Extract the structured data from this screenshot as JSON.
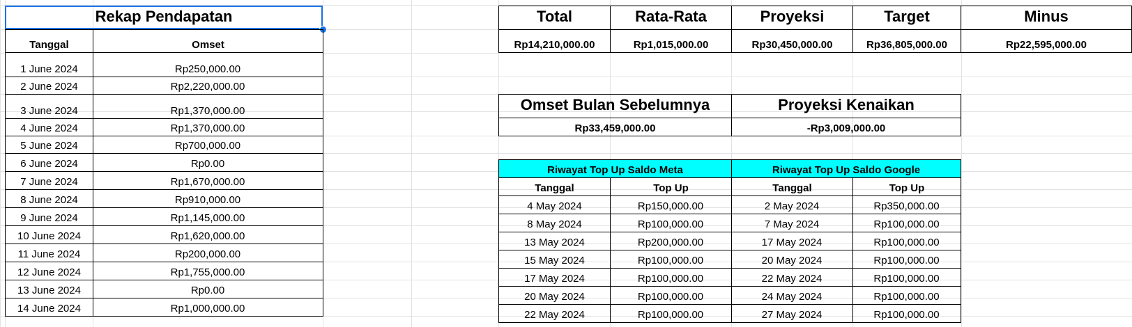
{
  "rekap": {
    "title": "Rekap Pendapatan",
    "col_tanggal": "Tanggal",
    "col_omset": "Omset",
    "rows": [
      {
        "tanggal": "1 June 2024",
        "omset": "Rp250,000.00"
      },
      {
        "tanggal": "2 June 2024",
        "omset": "Rp2,220,000.00"
      },
      {
        "tanggal": "3 June 2024",
        "omset": "Rp1,370,000.00"
      },
      {
        "tanggal": "4 June 2024",
        "omset": "Rp1,370,000.00"
      },
      {
        "tanggal": "5 June 2024",
        "omset": "Rp700,000.00"
      },
      {
        "tanggal": "6 June 2024",
        "omset": "Rp0.00"
      },
      {
        "tanggal": "7 June 2024",
        "omset": "Rp1,670,000.00"
      },
      {
        "tanggal": "8 June 2024",
        "omset": "Rp910,000.00"
      },
      {
        "tanggal": "9 June 2024",
        "omset": "Rp1,145,000.00"
      },
      {
        "tanggal": "10 June 2024",
        "omset": "Rp1,620,000.00"
      },
      {
        "tanggal": "11 June 2024",
        "omset": "Rp200,000.00"
      },
      {
        "tanggal": "12 June 2024",
        "omset": "Rp1,755,000.00"
      },
      {
        "tanggal": "13 June 2024",
        "omset": "Rp0.00"
      },
      {
        "tanggal": "14 June 2024",
        "omset": "Rp1,000,000.00"
      }
    ]
  },
  "summary": {
    "headers": [
      "Total",
      "Rata-Rata",
      "Proyeksi",
      "Target",
      "Minus"
    ],
    "values": [
      "Rp14,210,000.00",
      "Rp1,015,000.00",
      "Rp30,450,000.00",
      "Rp36,805,000.00",
      "Rp22,595,000.00"
    ]
  },
  "comparison": {
    "prev_label": "Omset Bulan Sebelumnya",
    "prev_value": "Rp33,459,000.00",
    "proj_label": "Proyeksi Kenaikan",
    "proj_value": "-Rp3,009,000.00"
  },
  "topup": {
    "meta_title": "Riwayat Top Up Saldo Meta",
    "google_title": "Riwayat Top Up Saldo Google",
    "col_tanggal": "Tanggal",
    "col_topup": "Top Up",
    "meta_rows": [
      {
        "tanggal": "4 May 2024",
        "topup": "Rp150,000.00"
      },
      {
        "tanggal": "8 May 2024",
        "topup": "Rp100,000.00"
      },
      {
        "tanggal": "13 May 2024",
        "topup": "Rp200,000.00"
      },
      {
        "tanggal": "15 May 2024",
        "topup": "Rp100,000.00"
      },
      {
        "tanggal": "17 May 2024",
        "topup": "Rp100,000.00"
      },
      {
        "tanggal": "20 May 2024",
        "topup": "Rp100,000.00"
      },
      {
        "tanggal": "22 May 2024",
        "topup": "Rp100,000.00"
      }
    ],
    "google_rows": [
      {
        "tanggal": "2 May 2024",
        "topup": "Rp350,000.00"
      },
      {
        "tanggal": "7 May 2024",
        "topup": "Rp100,000.00"
      },
      {
        "tanggal": "17 May 2024",
        "topup": "Rp100,000.00"
      },
      {
        "tanggal": "20 May 2024",
        "topup": "Rp100,000.00"
      },
      {
        "tanggal": "22 May 2024",
        "topup": "Rp100,000.00"
      },
      {
        "tanggal": "24 May 2024",
        "topup": "Rp100,000.00"
      },
      {
        "tanggal": "27 May 2024",
        "topup": "Rp100,000.00"
      }
    ]
  },
  "colors": {
    "accent_cyan": "#00ffff",
    "selection_blue": "#1a73e8",
    "gridline": "#e2e2e2"
  }
}
